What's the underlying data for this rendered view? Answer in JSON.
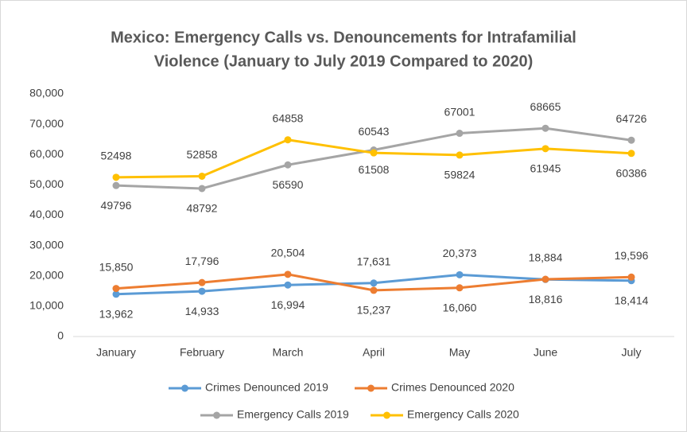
{
  "chart_data": {
    "type": "line",
    "title": [
      "Mexico: Emergency Calls vs. Denouncements for Intrafamilial",
      "Violence (January to July 2019 Compared to 2020)"
    ],
    "categories": [
      "January",
      "February",
      "March",
      "April",
      "May",
      "June",
      "July"
    ],
    "series": [
      {
        "name": "Crimes Denounced 2019",
        "color": "#5b9bd5",
        "values": [
          13962,
          14933,
          16994,
          17631,
          20373,
          18816,
          18414
        ],
        "value_labels": [
          "13,962",
          "14,933",
          "16,994",
          "17,631",
          "20,373",
          "18,816",
          "18,414"
        ]
      },
      {
        "name": "Crimes Denounced 2020",
        "color": "#ed7d31",
        "values": [
          15850,
          17796,
          20504,
          15237,
          16060,
          18884,
          19596
        ],
        "value_labels": [
          "15,850",
          "17,796",
          "20,504",
          "15,237",
          "16,060",
          "18,884",
          "19,596"
        ]
      },
      {
        "name": "Emergency Calls 2019",
        "color": "#a5a5a5",
        "values": [
          49796,
          48792,
          56590,
          61508,
          67001,
          68665,
          64726
        ]
      },
      {
        "name": "Emergency Calls 2020",
        "color": "#ffc000",
        "values": [
          52498,
          52858,
          64858,
          60543,
          59824,
          61945,
          60386
        ]
      }
    ],
    "ylim": [
      0,
      80000
    ],
    "yticks": [
      0,
      {
        "value": 10000,
        "label": "10,000"
      },
      {
        "value": 20000,
        "label": "20,000"
      },
      {
        "value": 30000,
        "label": "30,000"
      },
      {
        "value": 40000,
        "label": "40,000"
      },
      {
        "value": 50000,
        "label": "50,000"
      },
      {
        "value": 60000,
        "label": "60,000"
      },
      {
        "value": 70000,
        "label": "70,000"
      },
      {
        "value": 80000,
        "label": "80,000"
      }
    ],
    "grid": false,
    "legend": "bottom"
  }
}
